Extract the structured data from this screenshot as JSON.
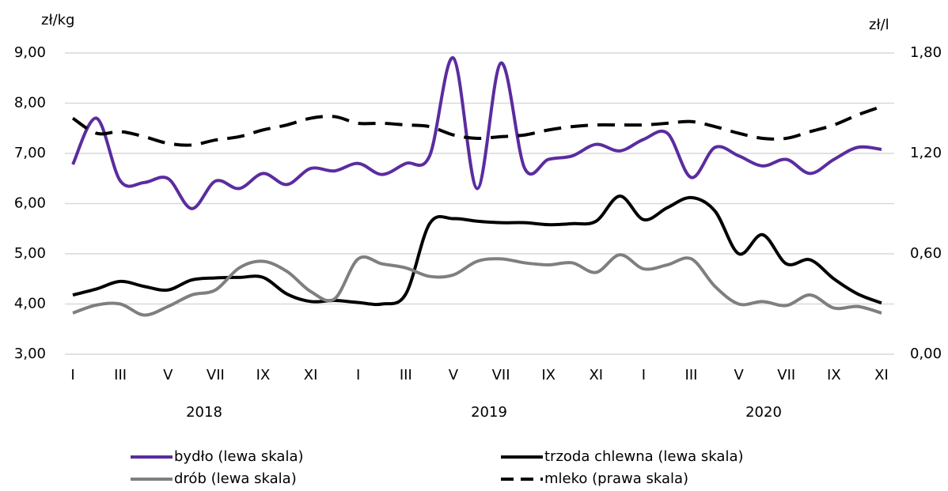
{
  "chart_data": {
    "type": "line",
    "y_label": "zł/kg",
    "y2_label": "zł/l",
    "categories": [
      "I",
      null,
      "III",
      null,
      "V",
      null,
      "VII",
      null,
      "IX",
      null,
      "XI",
      null,
      "I",
      null,
      "III",
      null,
      "V",
      null,
      "VII",
      null,
      "IX",
      null,
      "XI",
      null,
      "I",
      null,
      "III",
      null,
      "V",
      null,
      "VII",
      null,
      "IX",
      null,
      "XI"
    ],
    "year_labels": [
      "2018",
      "2019",
      "2020"
    ],
    "ylim": [
      3,
      9
    ],
    "yticks": [
      {
        "value": 3,
        "label": "3,00"
      },
      {
        "value": 4,
        "label": "4,00"
      },
      {
        "value": 5,
        "label": "5,00"
      },
      {
        "value": 6,
        "label": "6,00"
      },
      {
        "value": 7,
        "label": "7,00"
      },
      {
        "value": 8,
        "label": "8,00"
      },
      {
        "value": 9,
        "label": "9,00"
      }
    ],
    "y2lim": [
      0,
      1.8
    ],
    "y2ticks": [
      {
        "value": 0,
        "label": "0,00"
      },
      {
        "value": 0.6,
        "label": "0,60"
      },
      {
        "value": 1.2,
        "label": "1,20"
      },
      {
        "value": 1.8,
        "label": "1,80"
      }
    ],
    "grid": true,
    "series": [
      {
        "name": "bydło (lewa skala)",
        "color": "#5b2c9f",
        "dash": false,
        "values": [
          6.78,
          7.7,
          6.45,
          6.42,
          6.5,
          5.9,
          6.45,
          6.3,
          6.6,
          6.38,
          6.7,
          6.65,
          6.8,
          6.58,
          6.8,
          6.95,
          8.9,
          6.3,
          8.8,
          6.7,
          6.88,
          6.95,
          7.18,
          7.05,
          7.28,
          7.4,
          6.52,
          7.12,
          6.95,
          6.75,
          6.88,
          6.6,
          6.88,
          7.12,
          7.08
        ]
      },
      {
        "name": "trzoda chlewna (lewa skala)",
        "color": "#000000",
        "dash": false,
        "values": [
          4.18,
          4.3,
          4.45,
          4.35,
          4.28,
          4.48,
          4.52,
          4.53,
          4.53,
          4.2,
          4.05,
          4.07,
          4.03,
          4.0,
          4.2,
          5.6,
          5.7,
          5.65,
          5.62,
          5.62,
          5.58,
          5.6,
          5.65,
          6.15,
          5.68,
          5.92,
          6.12,
          5.85,
          5.0,
          5.38,
          4.8,
          4.88,
          4.5,
          4.2,
          4.02
        ]
      },
      {
        "name": "drób (lewa skala)",
        "color": "#7f7f7f",
        "dash": false,
        "values": [
          3.82,
          3.98,
          4.0,
          3.78,
          3.95,
          4.18,
          4.28,
          4.72,
          4.85,
          4.65,
          4.25,
          4.1,
          4.9,
          4.8,
          4.72,
          4.55,
          4.58,
          4.85,
          4.9,
          4.82,
          4.78,
          4.82,
          4.63,
          4.98,
          4.7,
          4.78,
          4.9,
          4.35,
          4.0,
          4.05,
          3.97,
          4.18,
          3.92,
          3.95,
          3.82
        ]
      },
      {
        "name": "mleko (prawa skala)",
        "color": "#000000",
        "dash": true,
        "axis": "y2",
        "values": [
          1.41,
          1.32,
          1.33,
          1.3,
          1.26,
          1.25,
          1.28,
          1.3,
          1.34,
          1.37,
          1.41,
          1.42,
          1.38,
          1.38,
          1.37,
          1.36,
          1.31,
          1.29,
          1.3,
          1.31,
          1.34,
          1.36,
          1.37,
          1.37,
          1.37,
          1.38,
          1.39,
          1.36,
          1.32,
          1.29,
          1.29,
          1.33,
          1.37,
          1.43,
          1.48
        ]
      }
    ]
  }
}
